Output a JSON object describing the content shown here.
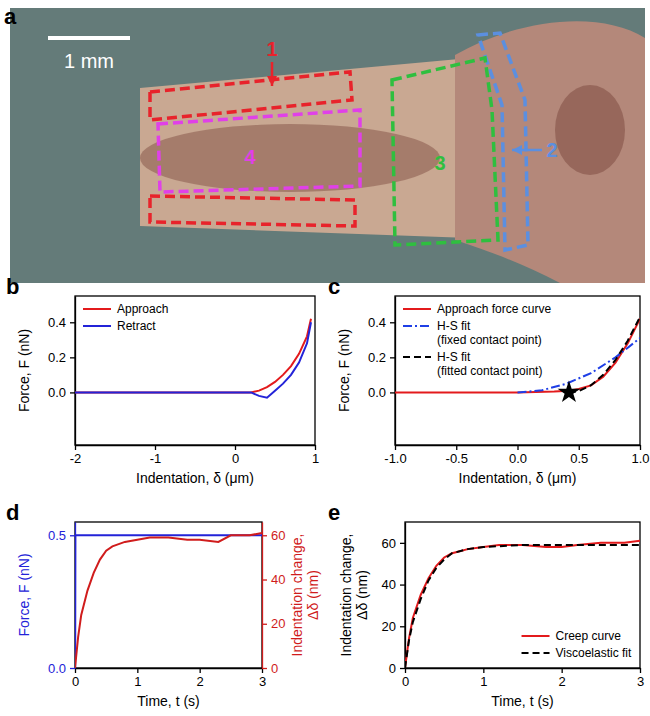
{
  "chart_data": [
    {
      "type": "image",
      "panel": "a",
      "scale_bar": "1 mm",
      "regions": [
        {
          "label": "1",
          "color": "#e8232b"
        },
        {
          "label": "2",
          "color": "#5b8fe0"
        },
        {
          "label": "3",
          "color": "#2fbf3f"
        },
        {
          "label": "4",
          "color": "#e040e8"
        }
      ]
    },
    {
      "type": "line",
      "panel": "b",
      "xlabel": "Indentation, δ (μm)",
      "ylabel": "Force, F (nN)",
      "xlim": [
        -2,
        1
      ],
      "xticks": [
        -2,
        -1,
        0,
        1
      ],
      "ylim": [
        -0.3,
        0.55
      ],
      "yticks": [
        {
          "value": 0,
          "label": "0.0"
        },
        0.2,
        0.4
      ],
      "legend": "upper left",
      "series": [
        {
          "name": "Approach",
          "color": "#e31a1c",
          "line_style": "solid",
          "x": [
            -2,
            -1,
            0,
            0.2,
            0.3,
            0.4,
            0.5,
            0.6,
            0.7,
            0.8,
            0.9,
            0.95
          ],
          "values": [
            0,
            0,
            0,
            0,
            0.01,
            0.03,
            0.06,
            0.1,
            0.15,
            0.22,
            0.32,
            0.42
          ]
        },
        {
          "name": "Retract",
          "color": "#2323d8",
          "line_style": "solid",
          "x": [
            -2,
            -1,
            0,
            0.2,
            0.3,
            0.4,
            0.5,
            0.6,
            0.7,
            0.8,
            0.9,
            0.95
          ],
          "values": [
            0,
            0,
            0,
            0,
            -0.02,
            -0.03,
            0.01,
            0.05,
            0.1,
            0.17,
            0.28,
            0.4
          ]
        }
      ]
    },
    {
      "type": "line",
      "panel": "c",
      "xlabel": "Indentation, δ (μm)",
      "ylabel": "Force, F (nN)",
      "xlim": [
        -1,
        1
      ],
      "xticks": [
        {
          "value": -1,
          "label": "-1.0"
        },
        -0.5,
        {
          "value": 0,
          "label": "0.0"
        },
        0.5,
        {
          "value": 1,
          "label": "1.0"
        }
      ],
      "ylim": [
        -0.3,
        0.55
      ],
      "yticks": [
        {
          "value": 0,
          "label": "0.0"
        },
        0.2,
        0.4
      ],
      "legend": "upper left",
      "series": [
        {
          "name": "Approach force curve",
          "color": "#e31a1c",
          "line_style": "solid",
          "x": [
            -1,
            -0.5,
            0,
            0.3,
            0.42,
            0.5,
            0.6,
            0.7,
            0.8,
            0.9,
            1.0
          ],
          "values": [
            0,
            0,
            0,
            0.005,
            0.01,
            0.02,
            0.04,
            0.09,
            0.17,
            0.28,
            0.42
          ]
        },
        {
          "name": "H-S fit\n(fixed contact point)",
          "color": "#1f3fe6",
          "line_style": "dashdot",
          "x": [
            0,
            0.2,
            0.4,
            0.6,
            0.8,
            1.0
          ],
          "values": [
            0,
            0.012,
            0.05,
            0.11,
            0.2,
            0.31
          ]
        },
        {
          "name": "H-S fit\n(fitted contact point)",
          "color": "#000000",
          "line_style": "dashed",
          "x": [
            0.42,
            0.5,
            0.6,
            0.7,
            0.8,
            0.9,
            1.0
          ],
          "values": [
            0,
            0.008,
            0.041,
            0.1,
            0.185,
            0.295,
            0.43
          ]
        },
        {
          "type": "scatter",
          "marker": "star",
          "color": "#000000",
          "x": [
            0.42
          ],
          "values": [
            0
          ]
        }
      ]
    },
    {
      "type": "line",
      "panel": "d",
      "xlabel": "Time, t (s)",
      "ylabel": "Force, F (nN)",
      "y2label": "Indentation change,\nΔδ (nm)",
      "xlim": [
        0,
        3
      ],
      "xticks": [
        0,
        1,
        2,
        3
      ],
      "ylim": [
        0,
        0.55
      ],
      "yticks": [
        {
          "value": 0,
          "label": "0.0"
        },
        0.5
      ],
      "y2lim": [
        0,
        66
      ],
      "y2ticks": [
        0,
        20,
        40,
        60
      ],
      "series": [
        {
          "color": "#2323d8",
          "line_style": "solid",
          "x": [
            0,
            0.005,
            0.5,
            1,
            1.5,
            2,
            2.5,
            3
          ],
          "values": [
            0,
            0.5,
            0.5,
            0.5,
            0.5,
            0.5,
            0.5,
            0.5
          ]
        },
        {
          "axis": "y2",
          "color": "#d01c1c",
          "line_style": "solid",
          "x": [
            0,
            0.05,
            0.1,
            0.2,
            0.3,
            0.4,
            0.5,
            0.6,
            0.7,
            0.8,
            1.0,
            1.2,
            1.5,
            1.8,
            2.0,
            2.3,
            2.5,
            2.8,
            3.0
          ],
          "values": [
            0,
            14,
            24,
            35,
            43,
            49,
            53,
            55,
            56,
            57,
            58,
            59,
            59,
            58,
            58,
            57,
            60,
            60,
            61
          ]
        }
      ]
    },
    {
      "type": "line",
      "panel": "e",
      "xlabel": "Time, t (s)",
      "ylabel": "Indentation change,\nΔδ (nm)",
      "xlim": [
        0,
        3
      ],
      "xticks": [
        0,
        1,
        2,
        3
      ],
      "ylim": [
        0,
        70
      ],
      "yticks": [
        0,
        20,
        40,
        60
      ],
      "legend": "lower right",
      "series": [
        {
          "name": "Creep curve",
          "color": "#e31a1c",
          "line_style": "solid",
          "x": [
            0,
            0.05,
            0.1,
            0.2,
            0.3,
            0.4,
            0.5,
            0.6,
            0.7,
            0.8,
            1.0,
            1.2,
            1.5,
            1.8,
            2.0,
            2.2,
            2.5,
            2.8,
            3.0
          ],
          "values": [
            0,
            14,
            24,
            35,
            43,
            49,
            53,
            55,
            56,
            57,
            58,
            59,
            59,
            58,
            58,
            59,
            60,
            60,
            61
          ]
        },
        {
          "name": "Viscoelastic fit",
          "color": "#000000",
          "line_style": "dashed",
          "x": [
            0,
            0.05,
            0.1,
            0.2,
            0.3,
            0.4,
            0.5,
            0.6,
            0.8,
            1.0,
            1.5,
            2.0,
            2.5,
            3.0
          ],
          "values": [
            0,
            13,
            22,
            33,
            42,
            48,
            52,
            55,
            57,
            58,
            59,
            59,
            59,
            59
          ]
        }
      ]
    }
  ]
}
